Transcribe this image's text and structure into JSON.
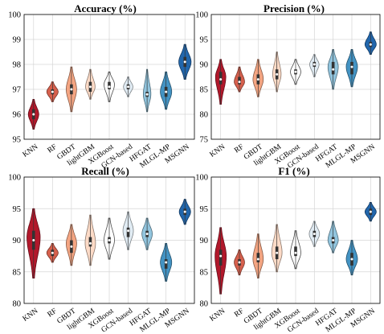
{
  "categories": [
    "KNN",
    "RF",
    "GBDT",
    "lightGBM",
    "XGBoost",
    "GCN-based",
    "HFGAT",
    "MLGL-MP",
    "MSGNN"
  ],
  "colors": [
    "#b2182b",
    "#d6604d",
    "#f4a582",
    "#fddbc7",
    "#ffffff",
    "#e1ecf4",
    "#92c5de",
    "#4393c3",
    "#2166ac"
  ],
  "chart_data": [
    {
      "type": "violin",
      "title": "Accuracy (%)",
      "ylim": [
        95,
        100
      ],
      "yticks": [
        95,
        96,
        97,
        98,
        99,
        100
      ],
      "grid": true,
      "values": [
        {
          "median": 96.0,
          "q1": 95.8,
          "q3": 96.2,
          "min": 95.4,
          "max": 96.6,
          "mode": 96.0,
          "width": 0.55
        },
        {
          "median": 96.9,
          "q1": 96.8,
          "q3": 97.0,
          "min": 96.5,
          "max": 97.3,
          "mode": 96.9,
          "width": 0.6
        },
        {
          "median": 97.0,
          "q1": 96.8,
          "q3": 97.2,
          "min": 96.1,
          "max": 97.9,
          "mode": 97.0,
          "width": 0.55
        },
        {
          "median": 97.1,
          "q1": 96.9,
          "q3": 97.3,
          "min": 96.6,
          "max": 97.8,
          "mode": 97.1,
          "width": 0.5
        },
        {
          "median": 97.1,
          "q1": 97.0,
          "q3": 97.3,
          "min": 96.5,
          "max": 97.7,
          "mode": 97.2,
          "width": 0.55
        },
        {
          "median": 97.1,
          "q1": 97.0,
          "q3": 97.2,
          "min": 96.7,
          "max": 97.5,
          "mode": 97.1,
          "width": 0.5
        },
        {
          "median": 96.8,
          "q1": 96.7,
          "q3": 96.9,
          "min": 96.1,
          "max": 97.8,
          "mode": 96.8,
          "width": 0.4
        },
        {
          "median": 96.9,
          "q1": 96.7,
          "q3": 97.1,
          "min": 96.2,
          "max": 97.7,
          "mode": 96.9,
          "width": 0.6
        },
        {
          "median": 98.1,
          "q1": 97.9,
          "q3": 98.3,
          "min": 97.4,
          "max": 98.8,
          "mode": 98.1,
          "width": 0.65
        }
      ]
    },
    {
      "type": "violin",
      "title": "Precision (%)",
      "ylim": [
        75,
        100
      ],
      "yticks": [
        75,
        80,
        85,
        90,
        95,
        100
      ],
      "grid": true,
      "values": [
        {
          "median": 87.0,
          "q1": 86.0,
          "q3": 88.5,
          "min": 82.0,
          "max": 91.0,
          "mode": 87.5,
          "width": 0.55
        },
        {
          "median": 86.5,
          "q1": 86.0,
          "q3": 87.5,
          "min": 84.5,
          "max": 89.5,
          "mode": 86.5,
          "width": 0.55
        },
        {
          "median": 87.0,
          "q1": 86.0,
          "q3": 88.0,
          "min": 83.5,
          "max": 91.0,
          "mode": 87.0,
          "width": 0.55
        },
        {
          "median": 88.0,
          "q1": 87.0,
          "q3": 89.0,
          "min": 84.5,
          "max": 92.5,
          "mode": 88.0,
          "width": 0.45
        },
        {
          "median": 88.5,
          "q1": 88.0,
          "q3": 89.0,
          "min": 86.0,
          "max": 91.0,
          "mode": 88.5,
          "width": 0.55
        },
        {
          "median": 90.0,
          "q1": 89.5,
          "q3": 90.5,
          "min": 87.5,
          "max": 92.0,
          "mode": 90.0,
          "width": 0.5
        },
        {
          "median": 89.0,
          "q1": 88.0,
          "q3": 90.5,
          "min": 85.0,
          "max": 93.0,
          "mode": 89.5,
          "width": 0.55
        },
        {
          "median": 89.5,
          "q1": 88.0,
          "q3": 90.5,
          "min": 85.5,
          "max": 93.0,
          "mode": 89.5,
          "width": 0.6
        },
        {
          "median": 94.0,
          "q1": 93.5,
          "q3": 94.5,
          "min": 92.0,
          "max": 96.5,
          "mode": 94.0,
          "width": 0.6
        }
      ]
    },
    {
      "type": "violin",
      "title": "Recall (%)",
      "ylim": [
        80,
        100
      ],
      "yticks": [
        80,
        85,
        90,
        95,
        100
      ],
      "grid": true,
      "values": [
        {
          "median": 90.0,
          "q1": 88.5,
          "q3": 91.5,
          "min": 84.0,
          "max": 95.0,
          "mode": 90.5,
          "width": 0.7
        },
        {
          "median": 88.0,
          "q1": 87.5,
          "q3": 88.5,
          "min": 86.5,
          "max": 89.5,
          "mode": 88.0,
          "width": 0.6
        },
        {
          "median": 89.0,
          "q1": 88.0,
          "q3": 90.0,
          "min": 86.0,
          "max": 92.5,
          "mode": 89.5,
          "width": 0.55
        },
        {
          "median": 89.5,
          "q1": 89.0,
          "q3": 90.5,
          "min": 86.0,
          "max": 94.0,
          "mode": 89.5,
          "width": 0.55
        },
        {
          "median": 90.0,
          "q1": 89.5,
          "q3": 90.5,
          "min": 87.0,
          "max": 93.5,
          "mode": 90.0,
          "width": 0.55
        },
        {
          "median": 91.5,
          "q1": 90.5,
          "q3": 92.0,
          "min": 88.5,
          "max": 94.5,
          "mode": 91.5,
          "width": 0.55
        },
        {
          "median": 91.0,
          "q1": 90.5,
          "q3": 91.5,
          "min": 88.5,
          "max": 93.5,
          "mode": 91.0,
          "width": 0.55
        },
        {
          "median": 86.5,
          "q1": 85.5,
          "q3": 87.0,
          "min": 83.5,
          "max": 89.5,
          "mode": 86.5,
          "width": 0.6
        },
        {
          "median": 94.5,
          "q1": 94.0,
          "q3": 95.0,
          "min": 92.5,
          "max": 96.5,
          "mode": 94.5,
          "width": 0.6
        }
      ]
    },
    {
      "type": "violin",
      "title": "F1 (%)",
      "ylim": [
        80,
        100
      ],
      "yticks": [
        80,
        85,
        90,
        95,
        100
      ],
      "grid": true,
      "values": [
        {
          "median": 87.5,
          "q1": 86.0,
          "q3": 88.5,
          "min": 81.5,
          "max": 92.0,
          "mode": 87.5,
          "width": 0.6
        },
        {
          "median": 86.5,
          "q1": 86.0,
          "q3": 87.0,
          "min": 84.5,
          "max": 88.5,
          "mode": 86.5,
          "width": 0.55
        },
        {
          "median": 87.0,
          "q1": 86.5,
          "q3": 88.0,
          "min": 84.0,
          "max": 91.0,
          "mode": 87.0,
          "width": 0.55
        },
        {
          "median": 88.0,
          "q1": 87.0,
          "q3": 89.0,
          "min": 85.0,
          "max": 92.5,
          "mode": 88.0,
          "width": 0.55
        },
        {
          "median": 88.0,
          "q1": 87.5,
          "q3": 89.0,
          "min": 85.5,
          "max": 91.5,
          "mode": 88.0,
          "width": 0.55
        },
        {
          "median": 91.0,
          "q1": 90.5,
          "q3": 91.5,
          "min": 89.0,
          "max": 93.0,
          "mode": 91.0,
          "width": 0.55
        },
        {
          "median": 90.0,
          "q1": 89.5,
          "q3": 90.5,
          "min": 88.0,
          "max": 93.0,
          "mode": 90.0,
          "width": 0.55
        },
        {
          "median": 87.0,
          "q1": 86.0,
          "q3": 88.0,
          "min": 84.5,
          "max": 90.0,
          "mode": 87.0,
          "width": 0.6
        },
        {
          "median": 94.5,
          "q1": 94.0,
          "q3": 95.0,
          "min": 93.0,
          "max": 96.0,
          "mode": 94.5,
          "width": 0.6
        }
      ]
    }
  ]
}
